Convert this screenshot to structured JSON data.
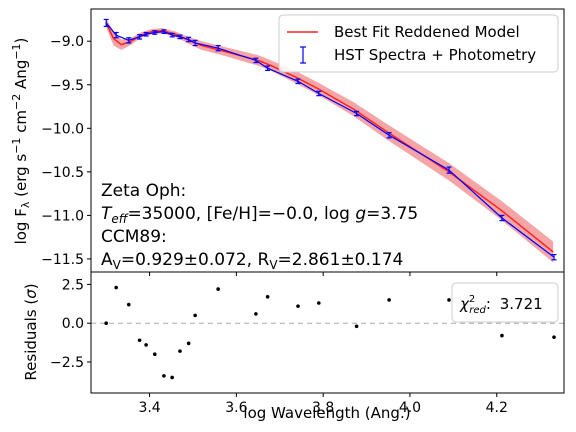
{
  "chart_data": [
    {
      "type": "line",
      "panel": "main",
      "ylabel_parts": {
        "pre": "log F",
        "sub": "λ",
        "mid": " (erg s",
        "sup1": "−1",
        "mid2": " cm",
        "sup2": "−2",
        "mid3": " Ang",
        "sup3": "−1",
        "post": ")"
      },
      "xlim": [
        3.265,
        4.355
      ],
      "ylim": [
        -11.65,
        -8.63
      ],
      "yticks": [
        -9.0,
        -9.5,
        -10.0,
        -10.5,
        -11.0,
        -11.5
      ],
      "ytick_labels": [
        "−9.0",
        "−9.5",
        "−10.0",
        "−10.5",
        "−11.0",
        "−11.5"
      ],
      "legend": {
        "placement": "top-right",
        "model_label": "Best Fit Reddened Model",
        "data_label": "HST Spectra + Photometry"
      },
      "annotation": {
        "line1": "Zeta Oph:",
        "line2": {
          "T": "T",
          "Tsub": "eff",
          "rest": "=35000, [Fe/H]=−0.0, log ",
          "g": "g",
          "grest": "=3.75"
        },
        "line3": "CCM89:",
        "line4": {
          "A": "A",
          "Asub": "V",
          "Arest": "=0.929±0.072, R",
          "Rsub": "V",
          "Rrest": "=2.861±0.174"
        }
      },
      "colors": {
        "model": "#ff2222",
        "band": "#f5a5a5",
        "data": "#0000ff"
      },
      "series": [
        {
          "name": "Best Fit Reddened Model",
          "x": [
            3.3,
            3.317,
            3.335,
            3.358,
            3.38,
            3.405,
            3.43,
            3.46,
            3.49,
            3.52,
            3.56,
            3.65,
            3.68,
            3.74,
            3.79,
            3.87,
            3.95,
            4.09,
            4.21,
            4.33
          ],
          "y": [
            -8.79,
            -8.97,
            -9.04,
            -9.0,
            -8.93,
            -8.89,
            -8.88,
            -8.92,
            -8.99,
            -9.05,
            -9.1,
            -9.22,
            -9.28,
            -9.42,
            -9.55,
            -9.78,
            -10.05,
            -10.5,
            -10.94,
            -11.42
          ],
          "band": [
            0.05,
            0.08,
            0.06,
            0.04,
            0.03,
            0.03,
            0.03,
            0.03,
            0.04,
            0.05,
            0.05,
            0.06,
            0.06,
            0.07,
            0.07,
            0.08,
            0.09,
            0.1,
            0.11,
            0.12
          ]
        },
        {
          "name": "HST Spectra + Photometry",
          "x": [
            3.3,
            3.323,
            3.352,
            3.377,
            3.392,
            3.412,
            3.433,
            3.452,
            3.47,
            3.49,
            3.505,
            3.558,
            3.645,
            3.672,
            3.742,
            3.79,
            3.877,
            3.952,
            4.09,
            4.212,
            4.332
          ],
          "y": [
            -8.79,
            -8.93,
            -8.99,
            -8.95,
            -8.92,
            -8.9,
            -8.89,
            -8.93,
            -8.95,
            -8.98,
            -9.02,
            -9.08,
            -9.22,
            -9.31,
            -9.46,
            -9.6,
            -9.83,
            -10.08,
            -10.48,
            -11.03,
            -11.48
          ],
          "yerr": [
            0.04,
            0.03,
            0.03,
            0.025,
            0.02,
            0.02,
            0.02,
            0.02,
            0.02,
            0.025,
            0.03,
            0.03,
            0.025,
            0.025,
            0.025,
            0.025,
            0.025,
            0.03,
            0.035,
            0.03,
            0.03
          ]
        }
      ]
    },
    {
      "type": "scatter",
      "panel": "residuals",
      "xlabel": "log Wavelength (Ang.)",
      "ylabel_parts": {
        "pre": "Residuals (",
        "sigma": "σ",
        "post": ")"
      },
      "xlim": [
        3.265,
        4.355
      ],
      "ylim": [
        -4.5,
        3.3
      ],
      "xticks": [
        3.4,
        3.6,
        3.8,
        4.0,
        4.2
      ],
      "xtick_labels": [
        "3.4",
        "3.6",
        "3.8",
        "4.0",
        "4.2"
      ],
      "yticks": [
        2.5,
        0.0,
        -2.5
      ],
      "ytick_labels": [
        "2.5",
        "0.0",
        "−2.5"
      ],
      "reference_line": 0.0,
      "chi2_box": {
        "placement": "top-right",
        "symbol": "χ",
        "sup": "2",
        "sub": "red",
        "value": "3.721"
      },
      "series": [
        {
          "x": [
            3.3,
            3.323,
            3.352,
            3.377,
            3.392,
            3.412,
            3.433,
            3.452,
            3.47,
            3.49,
            3.505,
            3.558,
            3.645,
            3.672,
            3.742,
            3.79,
            3.877,
            3.952,
            4.09,
            4.212,
            4.332
          ],
          "y": [
            0.0,
            2.3,
            1.2,
            -1.1,
            -1.4,
            -2.0,
            -3.4,
            -3.5,
            -1.8,
            -1.3,
            0.5,
            2.2,
            0.6,
            1.7,
            1.1,
            1.3,
            -0.2,
            1.5,
            1.5,
            -0.8,
            -0.9
          ]
        }
      ]
    }
  ]
}
